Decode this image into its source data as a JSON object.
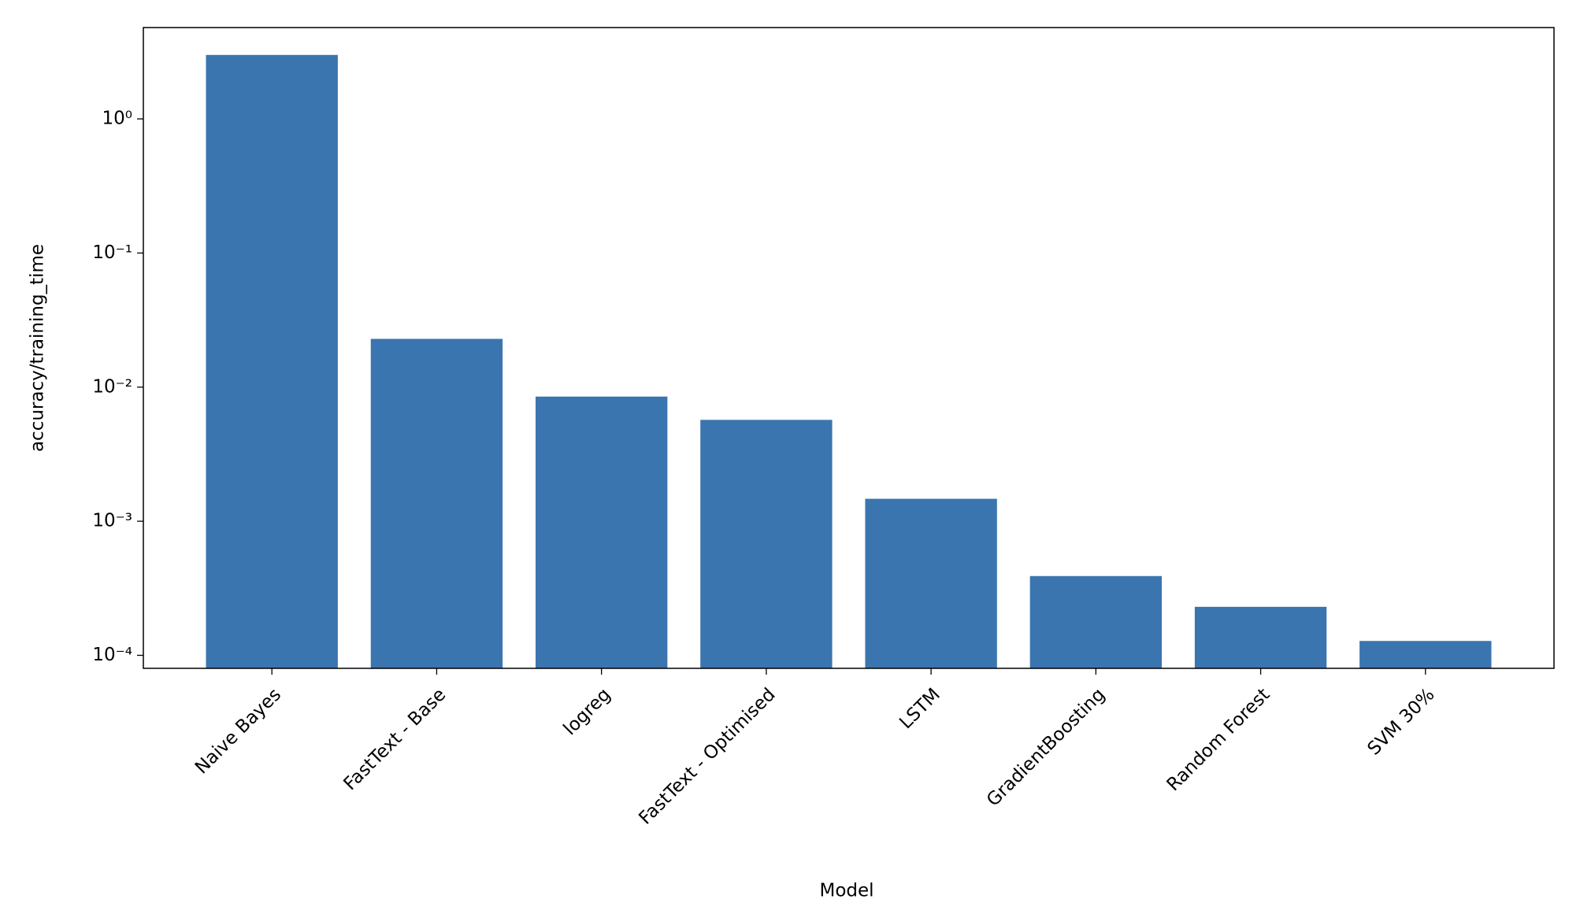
{
  "chart_data": {
    "type": "bar",
    "yscale": "log",
    "xlabel": "Model",
    "ylabel": "accuracy/training_time",
    "categories": [
      "Naive Bayes",
      "FastText - Base",
      "logreg",
      "FastText - Optimised",
      "LSTM",
      "GradientBoosting",
      "Random Forest",
      "SVM 30%"
    ],
    "values": [
      3.0,
      0.0229,
      0.0085,
      0.0057,
      0.00147,
      0.00039,
      0.00023,
      0.000128
    ],
    "color": "#3b75af",
    "ylim": [
      8e-05,
      4.8
    ],
    "yticks": [
      {
        "value": 0.0001,
        "label": "10⁻⁴"
      },
      {
        "value": 0.001,
        "label": "10⁻³"
      },
      {
        "value": 0.01,
        "label": "10⁻²"
      },
      {
        "value": 0.1,
        "label": "10⁻¹"
      },
      {
        "value": 1,
        "label": "10⁰"
      }
    ],
    "grid": false
  }
}
